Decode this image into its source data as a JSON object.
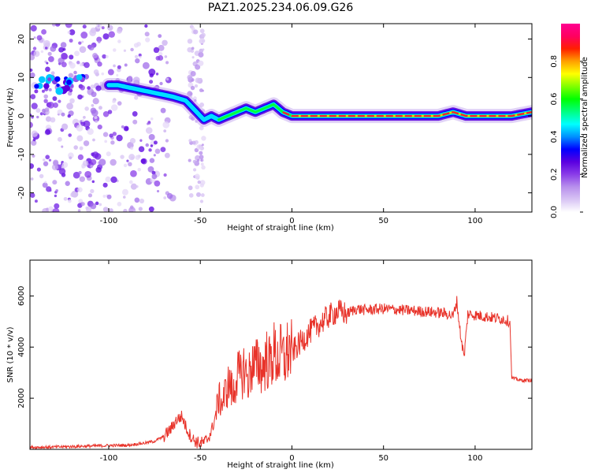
{
  "title": "PAZ1.2025.234.06.09.G26",
  "chart_data": [
    {
      "type": "heatmap",
      "xlabel": "Height of straight line (km)",
      "ylabel": "Frequency (Hz)",
      "xlim": [
        -143,
        131
      ],
      "ylim": [
        -25,
        24
      ],
      "xticks": [
        -100,
        -50,
        0,
        50,
        100
      ],
      "xtick_labels": [
        "-100",
        "-50",
        "0",
        "50",
        "100"
      ],
      "yticks": [
        -20,
        -10,
        0,
        10,
        20
      ],
      "ytick_labels": [
        "-20",
        "-10",
        "0",
        "10",
        "20"
      ],
      "ridge": {
        "x": [
          -135,
          -125,
          -115,
          -103,
          -95,
          -85,
          -75,
          -65,
          -58,
          -52,
          -48,
          -44,
          -40,
          -35,
          -30,
          -25,
          -20,
          -15,
          -10,
          -5,
          0,
          10,
          20,
          40,
          60,
          80,
          88,
          95,
          105,
          120,
          131
        ],
        "y": [
          8,
          8,
          9,
          8,
          8,
          7,
          6,
          5,
          4,
          1,
          -1,
          0,
          -1,
          0,
          1,
          2,
          1,
          2,
          3,
          1,
          0,
          0,
          0,
          0,
          0,
          0,
          1,
          0,
          0,
          0,
          1
        ]
      },
      "colorbar": {
        "label": "Normalized spectral amplitude",
        "range": [
          0,
          1
        ],
        "ticks": [
          0.0,
          0.2,
          0.4,
          0.6,
          0.8
        ],
        "tick_labels": [
          "0.0",
          "0.2",
          "0.4",
          "0.6",
          "0.8"
        ],
        "colors": [
          "#ffffff",
          "#d8c4f4",
          "#b890ec",
          "#8a3de8",
          "#5a00e0",
          "#0000ff",
          "#0090ff",
          "#00ffff",
          "#00ff80",
          "#00ff00",
          "#80ff00",
          "#ffff00",
          "#ffa000",
          "#ff2000",
          "#ff0060",
          "#ff0090"
        ]
      }
    },
    {
      "type": "line",
      "xlabel": "Height of straight line (km)",
      "ylabel": "SNR (10 * v/v)",
      "xlim": [
        -143,
        131
      ],
      "ylim": [
        0,
        7400
      ],
      "xticks": [
        -100,
        -50,
        0,
        50,
        100
      ],
      "xtick_labels": [
        "-100",
        "-50",
        "0",
        "50",
        "100"
      ],
      "yticks": [
        2000,
        4000,
        6000
      ],
      "ytick_labels": [
        "2000",
        "4000",
        "6000"
      ],
      "color": "#e8332a",
      "series": [
        {
          "name": "SNR",
          "x": [
            -143,
            -130,
            -120,
            -110,
            -100,
            -90,
            -80,
            -75,
            -70,
            -66,
            -63,
            -60,
            -58,
            -56,
            -54,
            -52,
            -50,
            -48,
            -46,
            -44,
            -42,
            -40,
            -38,
            -36,
            -34,
            -32,
            -30,
            -28,
            -26,
            -24,
            -22,
            -20,
            -18,
            -16,
            -14,
            -12,
            -10,
            -8,
            -6,
            -4,
            -2,
            0,
            5,
            10,
            15,
            20,
            25,
            30,
            35,
            40,
            50,
            60,
            70,
            80,
            85,
            88,
            90,
            92,
            94,
            96,
            100,
            105,
            110,
            115,
            119,
            120,
            122,
            125,
            131
          ],
          "y": [
            80,
            90,
            110,
            130,
            150,
            160,
            250,
            320,
            500,
            800,
            1150,
            1300,
            900,
            600,
            400,
            280,
            250,
            280,
            400,
            700,
            1200,
            2000,
            1800,
            2300,
            2600,
            2100,
            3000,
            2800,
            3200,
            2700,
            3300,
            3200,
            3400,
            3100,
            3600,
            3300,
            3800,
            3500,
            3700,
            3500,
            3900,
            3800,
            4200,
            4600,
            4900,
            5200,
            5400,
            5300,
            5500,
            5450,
            5500,
            5450,
            5400,
            5350,
            5300,
            5200,
            5800,
            4500,
            3600,
            5300,
            5250,
            5200,
            5150,
            5100,
            5000,
            2800,
            2750,
            2700,
            2700
          ]
        }
      ]
    }
  ]
}
